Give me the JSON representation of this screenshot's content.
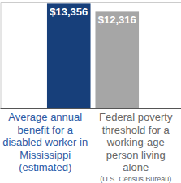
{
  "chart_data": {
    "type": "bar",
    "categories": [
      "Average annual benefit for a disabled worker in Mississippi (estimated)",
      "Federal poverty threshold for a working-age person living alone"
    ],
    "category_notes": [
      null,
      "(U.S. Census Bureau)"
    ],
    "values": [
      13356,
      12316
    ],
    "value_labels": [
      "$13,356",
      "$12,316"
    ],
    "colors": [
      "#173f7a",
      "#a6a6a6"
    ],
    "ylim": [
      0,
      13500
    ],
    "yticks": [
      0
    ],
    "data_labels": true,
    "tick_labels": false,
    "grid": false
  }
}
